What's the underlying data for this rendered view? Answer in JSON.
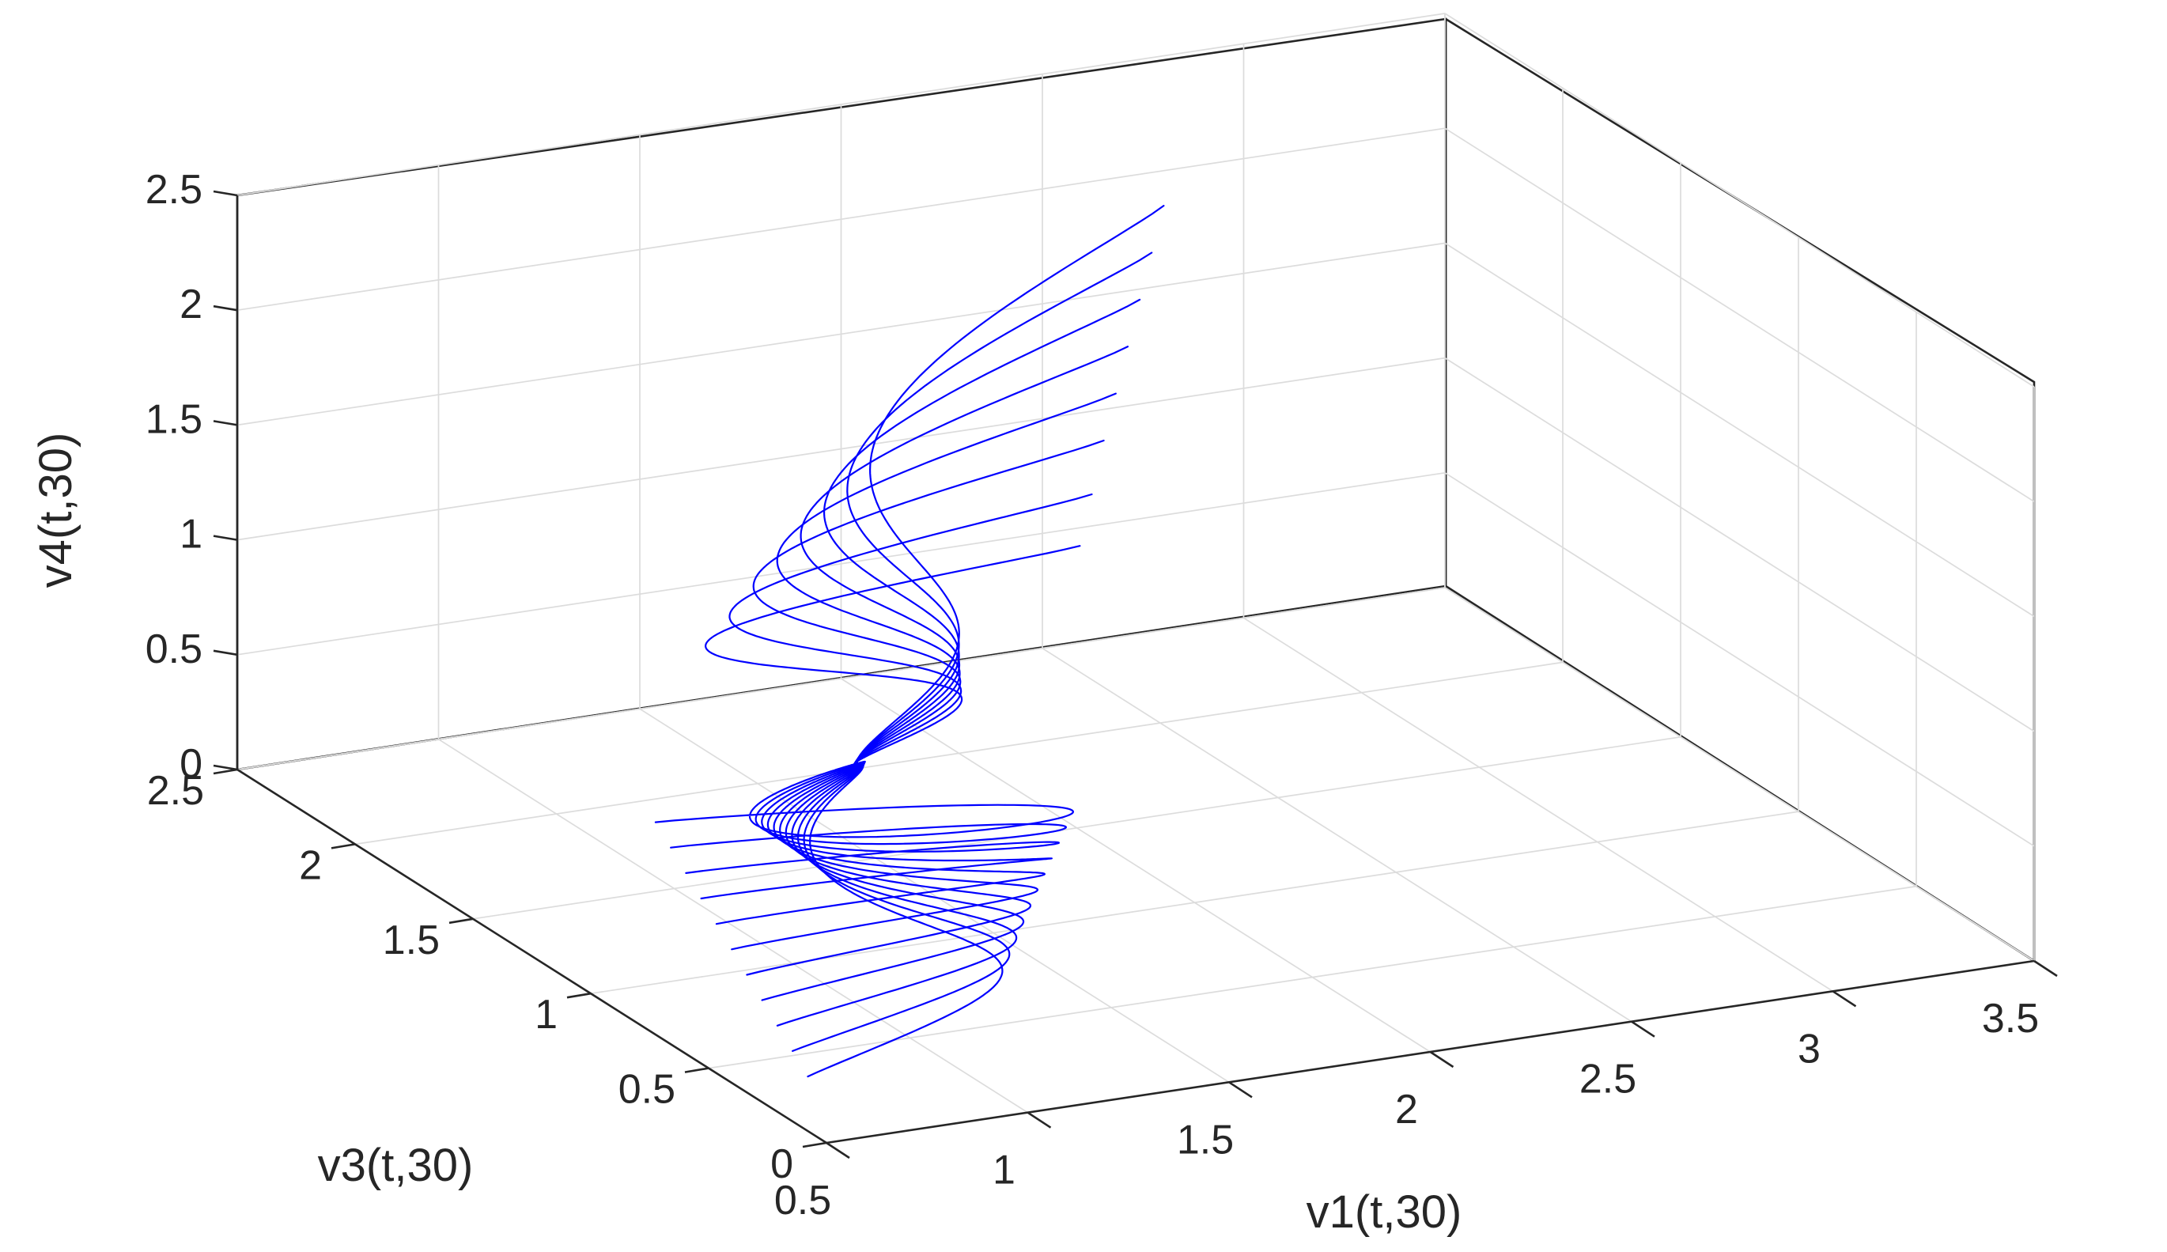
{
  "chart_data": {
    "type": "line",
    "projection": "3d",
    "title": "",
    "xlabel": "v1(t,30)",
    "ylabel": "v3(t,30)",
    "zlabel": "v4(t,30)",
    "xlim": [
      0.5,
      3.5
    ],
    "ylim": [
      0,
      2.5
    ],
    "zlim": [
      0,
      2.5
    ],
    "x_ticks": [
      "0.5",
      "1",
      "1.5",
      "2",
      "2.5",
      "3",
      "3.5"
    ],
    "y_ticks": [
      "0",
      "0.5",
      "1",
      "1.5",
      "2",
      "2.5"
    ],
    "z_ticks": [
      "0",
      "0.5",
      "1",
      "1.5",
      "2",
      "2.5"
    ],
    "grid": true,
    "line_color": "#0000ff",
    "equilibrium": [
      1.4,
      1.4,
      0.5
    ],
    "upper_starts": [
      [
        2.45,
        1.9,
        2.25
      ],
      [
        2.35,
        1.78,
        2.15
      ],
      [
        2.25,
        1.66,
        2.05
      ],
      [
        2.15,
        1.54,
        1.95
      ],
      [
        2.05,
        1.42,
        1.85
      ],
      [
        1.95,
        1.3,
        1.75
      ],
      [
        1.85,
        1.18,
        1.62
      ],
      [
        1.75,
        1.06,
        1.5
      ]
    ],
    "lower_starts": [
      [
        0.6,
        0.25,
        0.02
      ],
      [
        0.65,
        0.4,
        0.02
      ],
      [
        0.7,
        0.55,
        0.02
      ],
      [
        0.75,
        0.7,
        0.02
      ],
      [
        0.8,
        0.85,
        0.02
      ],
      [
        0.85,
        1.0,
        0.02
      ],
      [
        0.9,
        1.15,
        0.02
      ],
      [
        0.95,
        1.3,
        0.02
      ],
      [
        1.0,
        1.45,
        0.02
      ],
      [
        1.05,
        1.6,
        0.02
      ],
      [
        1.1,
        1.75,
        0.02
      ]
    ]
  }
}
